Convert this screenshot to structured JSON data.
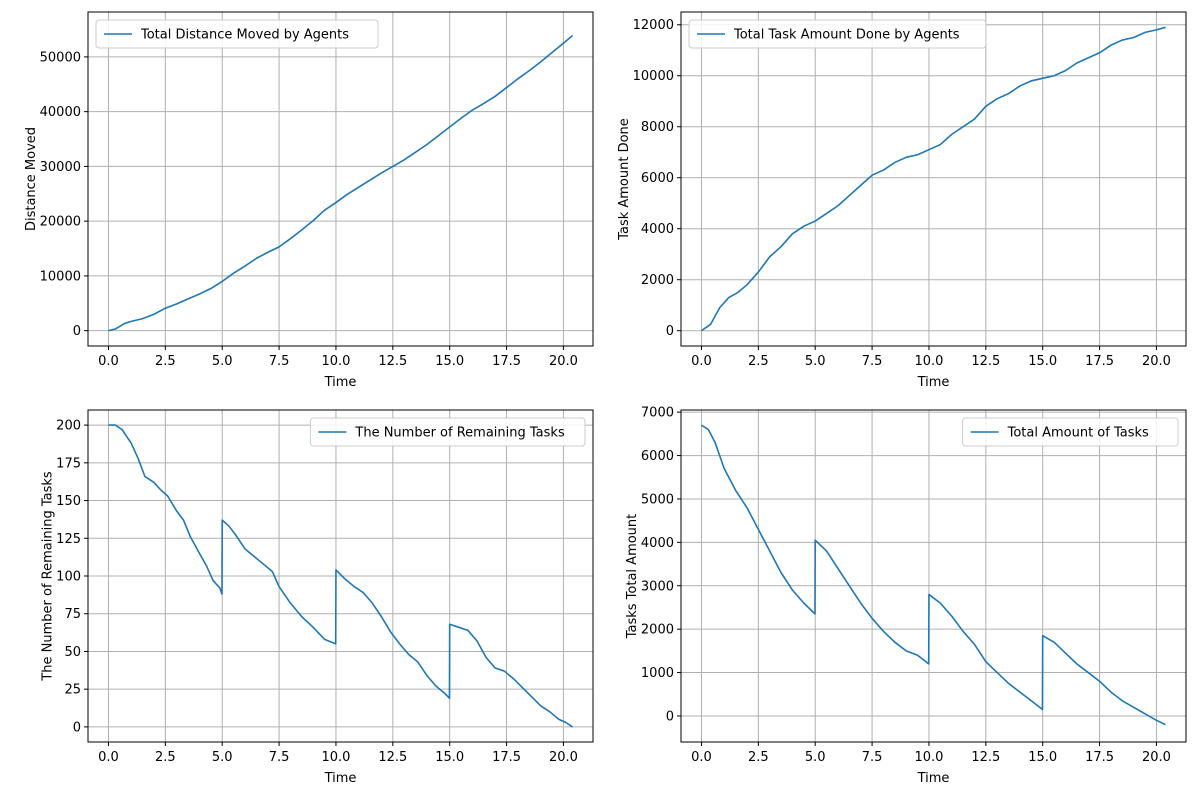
{
  "chart_data": [
    {
      "type": "line",
      "title": "",
      "xlabel": "Time",
      "ylabel": "Distance Moved",
      "xlim": [
        -0.9,
        21.3
      ],
      "ylim": [
        -2800,
        58200
      ],
      "xticks": [
        0,
        2.5,
        5,
        7.5,
        10,
        12.5,
        15,
        17.5,
        20
      ],
      "xtick_labels": [
        "0.0",
        "2.5",
        "5.0",
        "7.5",
        "10.0",
        "12.5",
        "15.0",
        "17.5",
        "20.0"
      ],
      "yticks": [
        0,
        10000,
        20000,
        30000,
        40000,
        50000
      ],
      "ytick_labels": [
        "0",
        "10000",
        "20000",
        "30000",
        "40000",
        "50000"
      ],
      "grid": true,
      "legend_position": "top-left",
      "color": "#1f77b4",
      "series": [
        {
          "name": "Total Distance Moved by Agents",
          "points": [
            [
              0,
              0
            ],
            [
              0.3,
              300
            ],
            [
              0.7,
              1300
            ],
            [
              1.0,
              1700
            ],
            [
              1.5,
              2200
            ],
            [
              2.0,
              3000
            ],
            [
              2.5,
              4100
            ],
            [
              3.0,
              4900
            ],
            [
              3.5,
              5800
            ],
            [
              4.0,
              6700
            ],
            [
              4.5,
              7700
            ],
            [
              5.0,
              9000
            ],
            [
              5.5,
              10500
            ],
            [
              6.0,
              11800
            ],
            [
              6.5,
              13200
            ],
            [
              7.0,
              14300
            ],
            [
              7.5,
              15300
            ],
            [
              8.0,
              16800
            ],
            [
              8.5,
              18400
            ],
            [
              9.0,
              20100
            ],
            [
              9.5,
              22000
            ],
            [
              10.0,
              23400
            ],
            [
              10.5,
              24900
            ],
            [
              11.0,
              26200
            ],
            [
              11.5,
              27500
            ],
            [
              12.0,
              28800
            ],
            [
              12.5,
              30000
            ],
            [
              13.0,
              31200
            ],
            [
              13.5,
              32600
            ],
            [
              14.0,
              34000
            ],
            [
              14.5,
              35600
            ],
            [
              15.0,
              37200
            ],
            [
              15.5,
              38800
            ],
            [
              16.0,
              40300
            ],
            [
              16.5,
              41500
            ],
            [
              17.0,
              42800
            ],
            [
              17.5,
              44400
            ],
            [
              18.0,
              46000
            ],
            [
              18.5,
              47500
            ],
            [
              19.0,
              49100
            ],
            [
              19.5,
              50800
            ],
            [
              20.0,
              52500
            ],
            [
              20.4,
              53900
            ]
          ]
        }
      ]
    },
    {
      "type": "line",
      "title": "",
      "xlabel": "Time",
      "ylabel": "Task Amount Done",
      "xlim": [
        -0.9,
        21.3
      ],
      "ylim": [
        -600,
        12500
      ],
      "xticks": [
        0,
        2.5,
        5,
        7.5,
        10,
        12.5,
        15,
        17.5,
        20
      ],
      "xtick_labels": [
        "0.0",
        "2.5",
        "5.0",
        "7.5",
        "10.0",
        "12.5",
        "15.0",
        "17.5",
        "20.0"
      ],
      "yticks": [
        0,
        2000,
        4000,
        6000,
        8000,
        10000,
        12000
      ],
      "ytick_labels": [
        "0",
        "2000",
        "4000",
        "6000",
        "8000",
        "10000",
        "12000"
      ],
      "grid": true,
      "legend_position": "top-left",
      "color": "#1f77b4",
      "series": [
        {
          "name": "Total Task Amount Done by Agents",
          "points": [
            [
              0,
              0
            ],
            [
              0.4,
              250
            ],
            [
              0.8,
              900
            ],
            [
              1.2,
              1300
            ],
            [
              1.6,
              1500
            ],
            [
              2.0,
              1800
            ],
            [
              2.5,
              2300
            ],
            [
              3.0,
              2900
            ],
            [
              3.5,
              3300
            ],
            [
              4.0,
              3800
            ],
            [
              4.5,
              4100
            ],
            [
              5.0,
              4300
            ],
            [
              5.5,
              4600
            ],
            [
              6.0,
              4900
            ],
            [
              6.5,
              5300
            ],
            [
              7.0,
              5700
            ],
            [
              7.5,
              6100
            ],
            [
              8.0,
              6300
            ],
            [
              8.5,
              6600
            ],
            [
              9.0,
              6800
            ],
            [
              9.5,
              6900
            ],
            [
              10.0,
              7100
            ],
            [
              10.5,
              7300
            ],
            [
              11.0,
              7700
            ],
            [
              11.5,
              8000
            ],
            [
              12.0,
              8300
            ],
            [
              12.5,
              8800
            ],
            [
              13.0,
              9100
            ],
            [
              13.5,
              9300
            ],
            [
              14.0,
              9600
            ],
            [
              14.5,
              9800
            ],
            [
              15.0,
              9900
            ],
            [
              15.5,
              10000
            ],
            [
              16.0,
              10200
            ],
            [
              16.5,
              10500
            ],
            [
              17.0,
              10700
            ],
            [
              17.5,
              10900
            ],
            [
              18.0,
              11200
            ],
            [
              18.5,
              11400
            ],
            [
              19.0,
              11500
            ],
            [
              19.5,
              11700
            ],
            [
              20.0,
              11800
            ],
            [
              20.4,
              11900
            ]
          ]
        }
      ]
    },
    {
      "type": "line",
      "title": "",
      "xlabel": "Time",
      "ylabel": "The Number of Remaining Tasks",
      "xlim": [
        -0.9,
        21.3
      ],
      "ylim": [
        -10,
        210
      ],
      "xticks": [
        0,
        2.5,
        5,
        7.5,
        10,
        12.5,
        15,
        17.5,
        20
      ],
      "xtick_labels": [
        "0.0",
        "2.5",
        "5.0",
        "7.5",
        "10.0",
        "12.5",
        "15.0",
        "17.5",
        "20.0"
      ],
      "yticks": [
        0,
        25,
        50,
        75,
        100,
        125,
        150,
        175,
        200
      ],
      "ytick_labels": [
        "0",
        "25",
        "50",
        "75",
        "100",
        "125",
        "150",
        "175",
        "200"
      ],
      "grid": true,
      "legend_position": "top-right",
      "color": "#1f77b4",
      "series": [
        {
          "name": "The Number of Remaining Tasks",
          "points": [
            [
              0,
              200
            ],
            [
              0.3,
              200
            ],
            [
              0.6,
              197
            ],
            [
              1.0,
              188
            ],
            [
              1.3,
              178
            ],
            [
              1.6,
              166
            ],
            [
              2.0,
              162
            ],
            [
              2.3,
              157
            ],
            [
              2.6,
              153
            ],
            [
              3.0,
              143
            ],
            [
              3.3,
              137
            ],
            [
              3.6,
              126
            ],
            [
              4.0,
              115
            ],
            [
              4.3,
              107
            ],
            [
              4.6,
              97
            ],
            [
              4.9,
              92
            ],
            [
              4.99,
              88
            ],
            [
              5.0,
              137
            ],
            [
              5.3,
              133
            ],
            [
              5.6,
              127
            ],
            [
              6.0,
              118
            ],
            [
              6.4,
              113
            ],
            [
              6.8,
              108
            ],
            [
              7.2,
              103
            ],
            [
              7.5,
              93
            ],
            [
              8.0,
              82
            ],
            [
              8.5,
              73
            ],
            [
              9.0,
              66
            ],
            [
              9.5,
              58
            ],
            [
              9.99,
              55
            ],
            [
              10.0,
              104
            ],
            [
              10.4,
              98
            ],
            [
              10.8,
              93
            ],
            [
              11.2,
              89
            ],
            [
              11.6,
              82
            ],
            [
              12.0,
              73
            ],
            [
              12.4,
              63
            ],
            [
              12.8,
              55
            ],
            [
              13.2,
              48
            ],
            [
              13.6,
              43
            ],
            [
              14.0,
              34
            ],
            [
              14.4,
              27
            ],
            [
              14.8,
              22
            ],
            [
              14.99,
              19
            ],
            [
              15.0,
              68
            ],
            [
              15.4,
              66
            ],
            [
              15.8,
              64
            ],
            [
              16.2,
              57
            ],
            [
              16.6,
              46
            ],
            [
              17.0,
              39
            ],
            [
              17.4,
              37
            ],
            [
              17.8,
              32
            ],
            [
              18.2,
              26
            ],
            [
              18.6,
              20
            ],
            [
              19.0,
              14
            ],
            [
              19.4,
              10
            ],
            [
              19.8,
              5
            ],
            [
              20.1,
              3
            ],
            [
              20.4,
              0
            ]
          ]
        }
      ]
    },
    {
      "type": "line",
      "title": "",
      "xlabel": "Time",
      "ylabel": "Tasks Total Amount",
      "xlim": [
        -0.9,
        21.3
      ],
      "ylim": [
        -600,
        7050
      ],
      "xticks": [
        0,
        2.5,
        5,
        7.5,
        10,
        12.5,
        15,
        17.5,
        20
      ],
      "xtick_labels": [
        "0.0",
        "2.5",
        "5.0",
        "7.5",
        "10.0",
        "12.5",
        "15.0",
        "17.5",
        "20.0"
      ],
      "yticks": [
        0,
        1000,
        2000,
        3000,
        4000,
        5000,
        6000,
        7000
      ],
      "ytick_labels": [
        "0",
        "1000",
        "2000",
        "3000",
        "4000",
        "5000",
        "6000",
        "7000"
      ],
      "grid": true,
      "legend_position": "top-right",
      "color": "#1f77b4",
      "series": [
        {
          "name": "Total Amount of Tasks",
          "points": [
            [
              0,
              6700
            ],
            [
              0.3,
              6600
            ],
            [
              0.6,
              6300
            ],
            [
              1.0,
              5700
            ],
            [
              1.5,
              5200
            ],
            [
              2.0,
              4800
            ],
            [
              2.5,
              4300
            ],
            [
              3.0,
              3800
            ],
            [
              3.5,
              3300
            ],
            [
              4.0,
              2900
            ],
            [
              4.5,
              2600
            ],
            [
              4.99,
              2350
            ],
            [
              5.0,
              4050
            ],
            [
              5.5,
              3800
            ],
            [
              6.0,
              3400
            ],
            [
              6.5,
              3000
            ],
            [
              7.0,
              2600
            ],
            [
              7.5,
              2250
            ],
            [
              8.0,
              1950
            ],
            [
              8.5,
              1700
            ],
            [
              9.0,
              1500
            ],
            [
              9.5,
              1400
            ],
            [
              9.99,
              1200
            ],
            [
              10.0,
              2800
            ],
            [
              10.5,
              2600
            ],
            [
              11.0,
              2300
            ],
            [
              11.5,
              1950
            ],
            [
              12.0,
              1650
            ],
            [
              12.5,
              1250
            ],
            [
              13.0,
              1000
            ],
            [
              13.5,
              750
            ],
            [
              14.0,
              550
            ],
            [
              14.5,
              350
            ],
            [
              14.99,
              150
            ],
            [
              15.0,
              1850
            ],
            [
              15.5,
              1700
            ],
            [
              16.0,
              1450
            ],
            [
              16.5,
              1200
            ],
            [
              17.0,
              1000
            ],
            [
              17.5,
              800
            ],
            [
              18.0,
              550
            ],
            [
              18.5,
              350
            ],
            [
              19.0,
              200
            ],
            [
              19.5,
              50
            ],
            [
              20.0,
              -100
            ],
            [
              20.4,
              -200
            ]
          ]
        }
      ]
    }
  ]
}
